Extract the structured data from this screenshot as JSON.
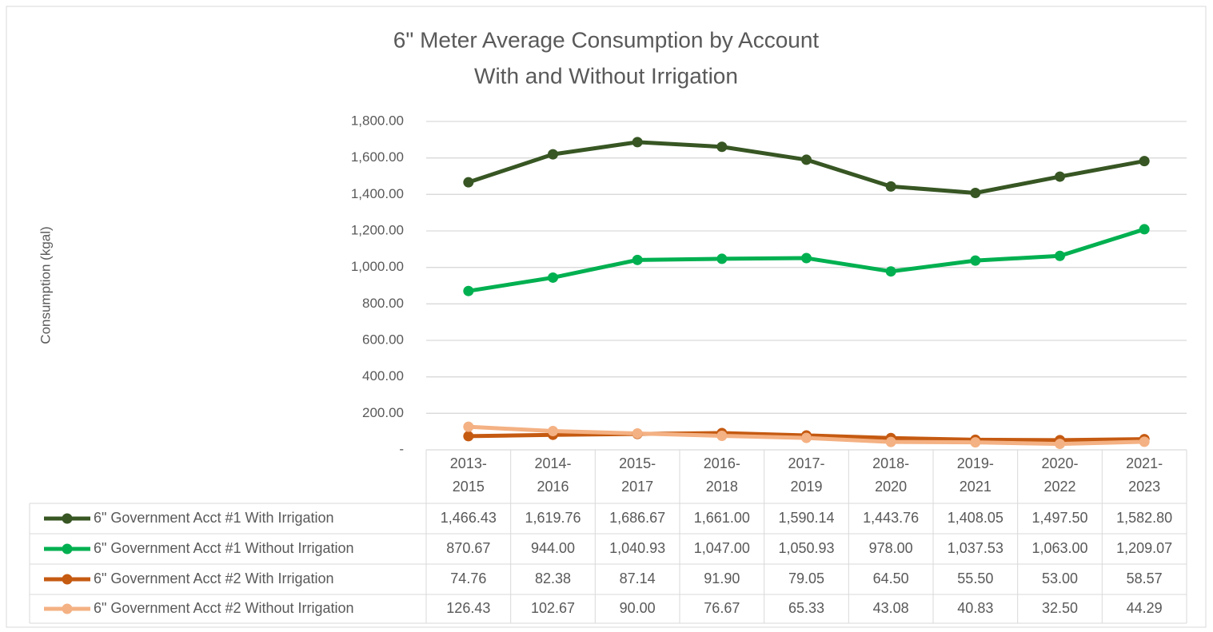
{
  "chart_data": {
    "type": "line",
    "title": [
      "6\" Meter Average Consumption by Account",
      "With and Without Irrigation"
    ],
    "y_label": "Consumption (kgal)",
    "categories": [
      "2013-2015",
      "2014-2016",
      "2015-2017",
      "2016-2018",
      "2017-2019",
      "2018-2020",
      "2019-2021",
      "2020-2022",
      "2021-2023"
    ],
    "ylim": [
      0,
      1800
    ],
    "yticks": [
      {
        "value": 0,
        "label": "-"
      },
      {
        "value": 200,
        "label": "200.00"
      },
      {
        "value": 400,
        "label": "400.00"
      },
      {
        "value": 600,
        "label": "600.00"
      },
      {
        "value": 800,
        "label": "800.00"
      },
      {
        "value": 1000,
        "label": "1,000.00"
      },
      {
        "value": 1200,
        "label": "1,200.00"
      },
      {
        "value": 1400,
        "label": "1,400.00"
      },
      {
        "value": 1600,
        "label": "1,600.00"
      },
      {
        "value": 1800,
        "label": "1,800.00"
      }
    ],
    "grid": true,
    "series": [
      {
        "name": "6\" Government Acct #1 With Irrigation",
        "color": "#375623",
        "values": [
          1466.43,
          1619.76,
          1686.67,
          1661.0,
          1590.14,
          1443.76,
          1408.05,
          1497.5,
          1582.8
        ],
        "value_labels": [
          "1,466.43",
          "1,619.76",
          "1,686.67",
          "1,661.00",
          "1,590.14",
          "1,443.76",
          "1,408.05",
          "1,497.50",
          "1,582.80"
        ]
      },
      {
        "name": "6\" Government Acct #1 Without Irrigation",
        "color": "#00b050",
        "values": [
          870.67,
          944.0,
          1040.93,
          1047.0,
          1050.93,
          978.0,
          1037.53,
          1063.0,
          1209.07
        ],
        "value_labels": [
          "870.67",
          "944.00",
          "1,040.93",
          "1,047.00",
          "1,050.93",
          "978.00",
          "1,037.53",
          "1,063.00",
          "1,209.07"
        ]
      },
      {
        "name": "6\" Government Acct #2 With Irrigation",
        "color": "#c55a11",
        "values": [
          74.76,
          82.38,
          87.14,
          91.9,
          79.05,
          64.5,
          55.5,
          53.0,
          58.57
        ],
        "value_labels": [
          "74.76",
          "82.38",
          "87.14",
          "91.90",
          "79.05",
          "64.50",
          "55.50",
          "53.00",
          "58.57"
        ]
      },
      {
        "name": "6\" Government Acct #2 Without Irrigation",
        "color": "#f4b183",
        "values": [
          126.43,
          102.67,
          90.0,
          76.67,
          65.33,
          43.08,
          40.83,
          32.5,
          44.29
        ],
        "value_labels": [
          "126.43",
          "102.67",
          "90.00",
          "76.67",
          "65.33",
          "43.08",
          "40.83",
          "32.50",
          "44.29"
        ]
      }
    ]
  }
}
